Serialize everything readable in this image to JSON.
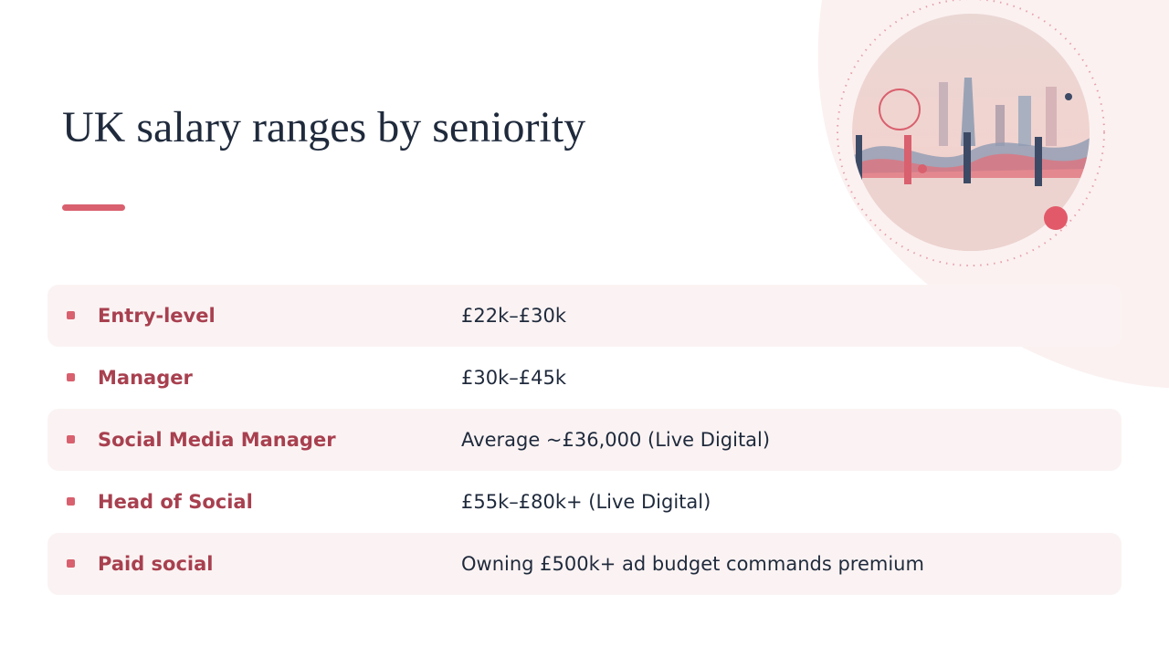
{
  "header": {
    "title": "UK salary ranges by seniority"
  },
  "table": {
    "rows": [
      [
        "Entry-level",
        "£22k–£30k"
      ],
      [
        "Manager",
        "£30k–£45k"
      ],
      [
        "Social Media Manager",
        "Average ~£36,000 (Live Digital)"
      ],
      [
        "Head of Social",
        "£55k–£80k+ (Live Digital)"
      ],
      [
        "Paid social",
        "Owning £500k+ ad budget commands premium"
      ]
    ]
  }
}
